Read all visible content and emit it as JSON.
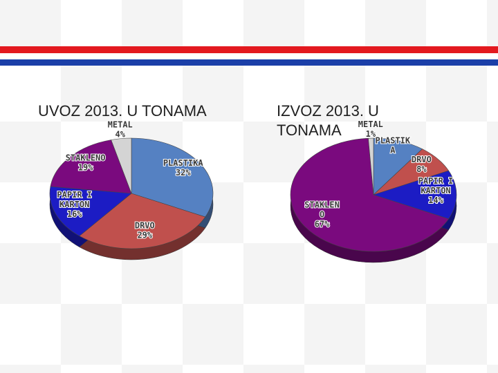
{
  "chart_data": [
    {
      "type": "pie",
      "title": "UVOZ 2013. U TONAMA",
      "categories": [
        "PLASTIKA",
        "DRVO",
        "PAPIR I\nKARTON",
        "STAKLENO",
        "METAL"
      ],
      "values": [
        32,
        29,
        16,
        19,
        4
      ],
      "value_labels": [
        "32%",
        "29%",
        "16%",
        "19%",
        "4%"
      ],
      "colors": [
        "#5581c2",
        "#c0504d",
        "#1c1cc4",
        "#7a0a7e",
        "#d4d4d4"
      ]
    },
    {
      "type": "pie",
      "title": "IZVOZ 2013. U\nTONAMA",
      "categories": [
        "PLASTIK\nA",
        "DRVO",
        "PAPIR I\nKARTON",
        "STAKLEN\nO",
        "METAL"
      ],
      "values": [
        10,
        8,
        14,
        67,
        1
      ],
      "value_labels": [
        null,
        "8%",
        "14%",
        "67%",
        "1%"
      ],
      "colors": [
        "#5581c2",
        "#c0504d",
        "#1c1cc4",
        "#7a0a7e",
        "#d4d4d4"
      ]
    }
  ]
}
